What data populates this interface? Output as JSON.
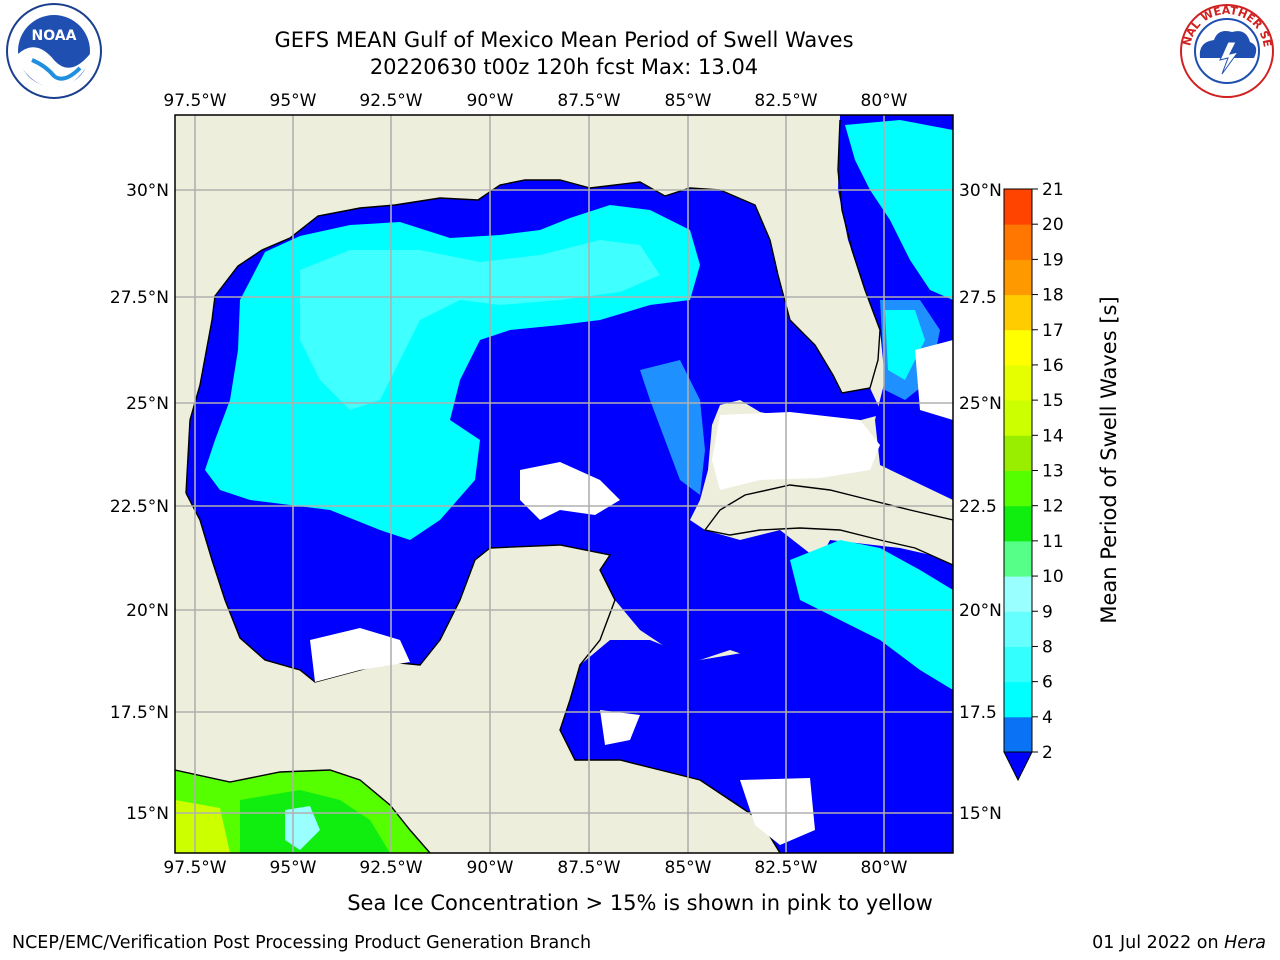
{
  "title": {
    "line1": "GEFS MEAN Gulf of Mexico Mean Period of Swell Waves",
    "line2": "20220630 t00z 120h fcst   Max: 13.04"
  },
  "map": {
    "lon_labels": [
      "97.5°W",
      "95°W",
      "92.5°W",
      "90°W",
      "87.5°W",
      "85°W",
      "82.5°W",
      "80°W"
    ],
    "lat_labels_left": [
      "30°N",
      "27.5°N",
      "25°N",
      "22.5°N",
      "20°N",
      "17.5°N",
      "15°N"
    ],
    "lat_labels_right": [
      "30°N",
      "27.5",
      "25°N",
      "22.5",
      "20°N",
      "17.5",
      "15°N"
    ],
    "colors": {
      "land": "#eeeedd",
      "ocean_low": "#0000ff",
      "grid": "#b0b0b0"
    }
  },
  "colorbar": {
    "label": "Mean Period of Swell Waves [s]",
    "ticks": [
      "2",
      "4",
      "6",
      "8",
      "9",
      "10",
      "11",
      "12",
      "13",
      "14",
      "15",
      "16",
      "17",
      "18",
      "19",
      "20",
      "21"
    ],
    "colors": [
      "#0a73f5",
      "#00ffff",
      "#33ffff",
      "#66ffff",
      "#99ffff",
      "#55ff88",
      "#10ee10",
      "#55ff00",
      "#99ee00",
      "#ccff00",
      "#e6ff00",
      "#ffff00",
      "#ffcc00",
      "#ff9900",
      "#ff7700",
      "#ff4400",
      "#ff2200",
      "#ff0000"
    ]
  },
  "logos": {
    "noaa": "NOAA",
    "nws": "NATIONAL WEATHER SERVICE"
  },
  "footer": {
    "note": "Sea Ice Concentration > 15% is shown in pink to yellow",
    "left": "NCEP/EMC/Verification Post Processing Product Generation Branch",
    "right_date": "01 Jul 2022 on ",
    "right_host": "Hera"
  }
}
